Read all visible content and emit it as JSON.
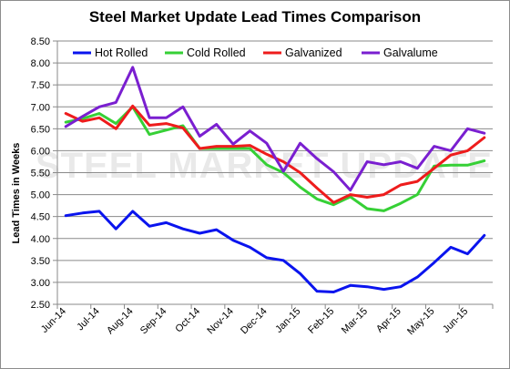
{
  "chart_data": {
    "type": "line",
    "title": "Steel Market Update Lead Times Comparison",
    "ylabel": "Lead Times in Weeks",
    "xlabel": "",
    "watermark": "STEEL MARKET UPDATE",
    "ylim": [
      2.5,
      8.5
    ],
    "yticks": [
      2.5,
      3.0,
      3.5,
      4.0,
      4.5,
      5.0,
      5.5,
      6.0,
      6.5,
      7.0,
      7.5,
      8.0,
      8.5
    ],
    "ytick_labels": [
      "2.50",
      "3.00",
      "3.50",
      "4.00",
      "4.50",
      "5.00",
      "5.50",
      "6.00",
      "6.50",
      "7.00",
      "7.50",
      "8.00",
      "8.50"
    ],
    "xtick_labels": [
      "Jun-14",
      "Jul-14",
      "Aug-14",
      "Sep-14",
      "Oct-14",
      "Nov-14",
      "Dec-14",
      "Jan-15",
      "Feb-15",
      "Mar-15",
      "Apr-15",
      "May-15",
      "Jun-15"
    ],
    "points_per_month": 2,
    "grid": true,
    "legend_position": "top",
    "series": [
      {
        "name": "Hot Rolled",
        "color": "#0a14ee",
        "values": [
          4.52,
          4.58,
          4.62,
          4.22,
          4.62,
          4.28,
          4.36,
          4.22,
          4.12,
          4.2,
          3.96,
          3.8,
          3.56,
          3.5,
          3.2,
          2.8,
          2.78,
          2.93,
          2.9,
          2.84,
          2.9,
          3.12,
          3.45,
          3.8,
          3.65,
          4.07
        ]
      },
      {
        "name": "Cold Rolled",
        "color": "#36d036",
        "values": [
          6.65,
          6.73,
          6.85,
          6.62,
          7.0,
          6.37,
          6.47,
          6.57,
          6.05,
          6.05,
          6.05,
          6.05,
          5.68,
          5.5,
          5.17,
          4.9,
          4.77,
          4.95,
          4.68,
          4.63,
          4.8,
          5.0,
          5.65,
          5.67,
          5.67,
          5.77
        ]
      },
      {
        "name": "Galvanized",
        "color": "#ee1c1c",
        "values": [
          6.85,
          6.67,
          6.75,
          6.5,
          7.02,
          6.58,
          6.62,
          6.52,
          6.05,
          6.1,
          6.1,
          6.12,
          5.92,
          5.75,
          5.5,
          5.15,
          4.82,
          5.0,
          4.94,
          5.0,
          5.22,
          5.3,
          5.6,
          5.9,
          6.0,
          6.3
        ]
      },
      {
        "name": "Galvalume",
        "color": "#7a1fd0",
        "values": [
          6.55,
          6.78,
          7.0,
          7.1,
          7.9,
          6.75,
          6.75,
          7.0,
          6.33,
          6.6,
          6.15,
          6.45,
          6.17,
          5.53,
          6.17,
          5.82,
          5.52,
          5.1,
          5.75,
          5.68,
          5.75,
          5.6,
          6.1,
          6.0,
          6.5,
          6.4
        ]
      }
    ]
  }
}
